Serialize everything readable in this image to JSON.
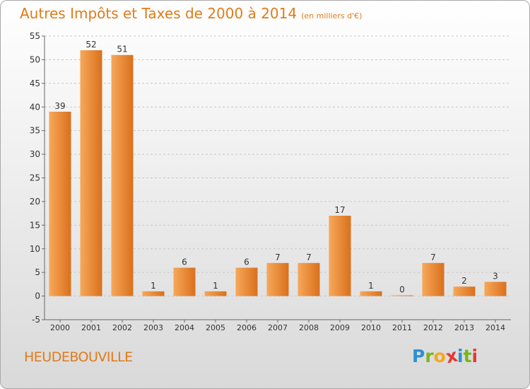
{
  "title": "Autres Impôts et Taxes de 2000 à 2014",
  "subtitle": "(en milliers d'€)",
  "town": "HEUDEBOUVILLE",
  "logo": {
    "letters": [
      {
        "char": "P",
        "color": "#2e8fd6"
      },
      {
        "char": "r",
        "color": "#7ab51d"
      },
      {
        "char": "o",
        "color": "#f5a623"
      },
      {
        "char": "x",
        "color": "#e53935"
      },
      {
        "char": "i",
        "color": "#2e8fd6"
      },
      {
        "char": "t",
        "color": "#7ab51d"
      },
      {
        "char": "i",
        "color": "#e53935"
      }
    ]
  },
  "colors": {
    "bar_light": "#f7a85a",
    "bar_dark": "#d9701c",
    "axis": "#666666",
    "grid": "#c8c8c8",
    "text": "#333333",
    "accent": "#e07b1a"
  },
  "chart_data": {
    "type": "bar",
    "categories": [
      "2000",
      "2001",
      "2002",
      "2003",
      "2004",
      "2005",
      "2006",
      "2007",
      "2008",
      "2009",
      "2010",
      "2011",
      "2012",
      "2013",
      "2014"
    ],
    "values": [
      39,
      52,
      51,
      1,
      6,
      1,
      6,
      7,
      7,
      17,
      1,
      0,
      7,
      2,
      3
    ],
    "ylim": [
      -5,
      55
    ],
    "yticks": [
      -5,
      0,
      5,
      10,
      15,
      20,
      25,
      30,
      35,
      40,
      45,
      50,
      55
    ],
    "grid": "horizontal dashed",
    "xlabel": "",
    "ylabel": ""
  }
}
